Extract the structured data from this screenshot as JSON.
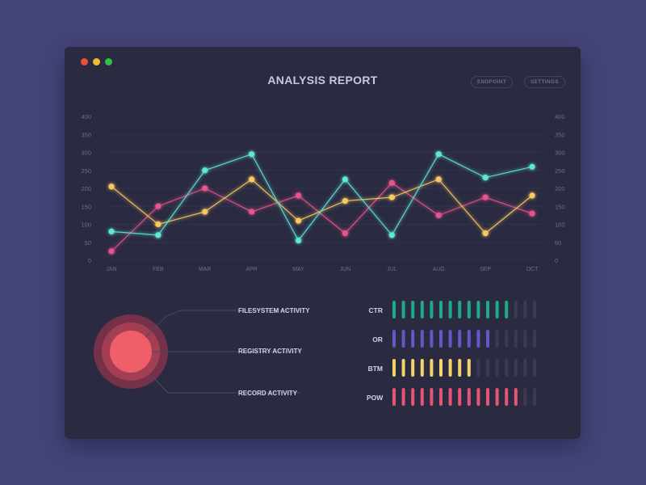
{
  "window": {
    "title": "ANALYSIS REPORT",
    "buttons": [
      {
        "label": "ENDPOINT"
      },
      {
        "label": "SETTINGS"
      }
    ],
    "controls": [
      {
        "name": "close",
        "color": "#ee4d3a"
      },
      {
        "name": "minimize",
        "color": "#f4bd2f"
      },
      {
        "name": "maximize",
        "color": "#2dc340"
      }
    ]
  },
  "chart_data": {
    "type": "line",
    "categories": [
      "JAN",
      "FEB",
      "MAR",
      "APR",
      "MAY",
      "JUN",
      "JUL",
      "AUG",
      "SEP",
      "OCT"
    ],
    "ylim": [
      0,
      400
    ],
    "yticks": [
      0,
      50,
      100,
      150,
      200,
      250,
      300,
      350,
      400
    ],
    "grid": true,
    "series": [
      {
        "color": "#5ee6d8",
        "values": [
          80,
          70,
          250,
          295,
          55,
          225,
          70,
          295,
          230,
          260
        ]
      },
      {
        "color": "#f7c95e",
        "values": [
          205,
          100,
          135,
          225,
          110,
          165,
          175,
          225,
          75,
          180
        ]
      },
      {
        "color": "#e8538a",
        "values": [
          25,
          150,
          200,
          135,
          180,
          75,
          215,
          125,
          175,
          130
        ]
      }
    ]
  },
  "activity": {
    "labels": [
      "FILESYSTEM ACTIVITY",
      "REGISTRY ACTIVITY",
      "RECORD ACTIVITY"
    ],
    "colors": {
      "outer": "#743149",
      "mid": "#a33f52",
      "inner": "#ee5f69"
    }
  },
  "meters": {
    "total": 16,
    "inactive_color": "#3a3a55",
    "rows": [
      {
        "label": "CTR",
        "filled": 13,
        "color": "#1fa986"
      },
      {
        "label": "OR",
        "filled": 11,
        "color": "#6757c4"
      },
      {
        "label": "BTM",
        "filled": 9,
        "color": "#f6d26a"
      },
      {
        "label": "POW",
        "filled": 14,
        "color": "#e55674"
      }
    ]
  }
}
